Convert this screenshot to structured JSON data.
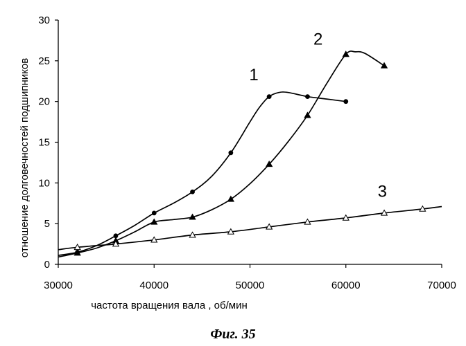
{
  "chart_data": {
    "type": "line",
    "xlabel": "частота вращения вала , об/мин",
    "ylabel": "отношение долговечностей подшипников",
    "xlim": [
      30000,
      70000
    ],
    "ylim": [
      0,
      30
    ],
    "xticks": [
      30000,
      40000,
      50000,
      60000,
      70000
    ],
    "yticks": [
      0,
      5,
      10,
      15,
      20,
      25,
      30
    ],
    "grid": false,
    "series": [
      {
        "name": "1",
        "marker": "circle-filled",
        "points": [
          [
            32000,
            1.5
          ],
          [
            36000,
            3.5
          ],
          [
            40000,
            6.3
          ],
          [
            44000,
            8.9
          ],
          [
            48000,
            13.7
          ],
          [
            52000,
            20.6
          ],
          [
            56000,
            20.6
          ],
          [
            60000,
            20.0
          ]
        ],
        "curve": [
          [
            30000,
            1.1
          ],
          [
            32000,
            1.5
          ],
          [
            34000,
            2.3
          ],
          [
            36000,
            3.5
          ],
          [
            38000,
            4.8
          ],
          [
            40000,
            6.3
          ],
          [
            42000,
            7.5
          ],
          [
            44000,
            8.9
          ],
          [
            46000,
            10.8
          ],
          [
            48000,
            13.7
          ],
          [
            50000,
            17.5
          ],
          [
            51000,
            19.3
          ],
          [
            52000,
            20.6
          ],
          [
            53000,
            21.1
          ],
          [
            54000,
            21.1
          ],
          [
            56000,
            20.6
          ],
          [
            58000,
            20.3
          ],
          [
            60000,
            20.0
          ]
        ]
      },
      {
        "name": "2",
        "marker": "triangle-filled",
        "points": [
          [
            32000,
            1.4
          ],
          [
            36000,
            2.9
          ],
          [
            40000,
            5.2
          ],
          [
            44000,
            5.8
          ],
          [
            48000,
            8.0
          ],
          [
            52000,
            12.3
          ],
          [
            56000,
            18.3
          ],
          [
            60000,
            25.8
          ],
          [
            64000,
            24.4
          ]
        ],
        "curve": [
          [
            30000,
            0.9
          ],
          [
            32000,
            1.4
          ],
          [
            34000,
            2.0
          ],
          [
            36000,
            2.9
          ],
          [
            38000,
            4.0
          ],
          [
            40000,
            5.2
          ],
          [
            42000,
            5.5
          ],
          [
            44000,
            5.8
          ],
          [
            46000,
            6.7
          ],
          [
            48000,
            8.0
          ],
          [
            50000,
            9.9
          ],
          [
            52000,
            12.3
          ],
          [
            54000,
            15.1
          ],
          [
            56000,
            18.3
          ],
          [
            58000,
            22.2
          ],
          [
            60000,
            25.8
          ],
          [
            61000,
            26.1
          ],
          [
            62000,
            25.9
          ],
          [
            64000,
            24.4
          ]
        ]
      },
      {
        "name": "3",
        "marker": "triangle-open",
        "points": [
          [
            32000,
            2.1
          ],
          [
            36000,
            2.5
          ],
          [
            40000,
            3.0
          ],
          [
            44000,
            3.6
          ],
          [
            48000,
            4.0
          ],
          [
            52000,
            4.6
          ],
          [
            56000,
            5.2
          ],
          [
            60000,
            5.7
          ],
          [
            64000,
            6.3
          ],
          [
            68000,
            6.8
          ]
        ],
        "curve": [
          [
            30000,
            1.8
          ],
          [
            32000,
            2.1
          ],
          [
            36000,
            2.5
          ],
          [
            40000,
            3.0
          ],
          [
            44000,
            3.6
          ],
          [
            48000,
            4.0
          ],
          [
            52000,
            4.6
          ],
          [
            56000,
            5.2
          ],
          [
            60000,
            5.7
          ],
          [
            64000,
            6.3
          ],
          [
            68000,
            6.8
          ],
          [
            70000,
            7.1
          ]
        ]
      }
    ],
    "labels": [
      {
        "text": "1",
        "x": 50400,
        "y": 22.6
      },
      {
        "text": "2",
        "x": 57100,
        "y": 27.0
      },
      {
        "text": "3",
        "x": 63800,
        "y": 8.3
      }
    ],
    "caption": "Фиг. 35"
  }
}
